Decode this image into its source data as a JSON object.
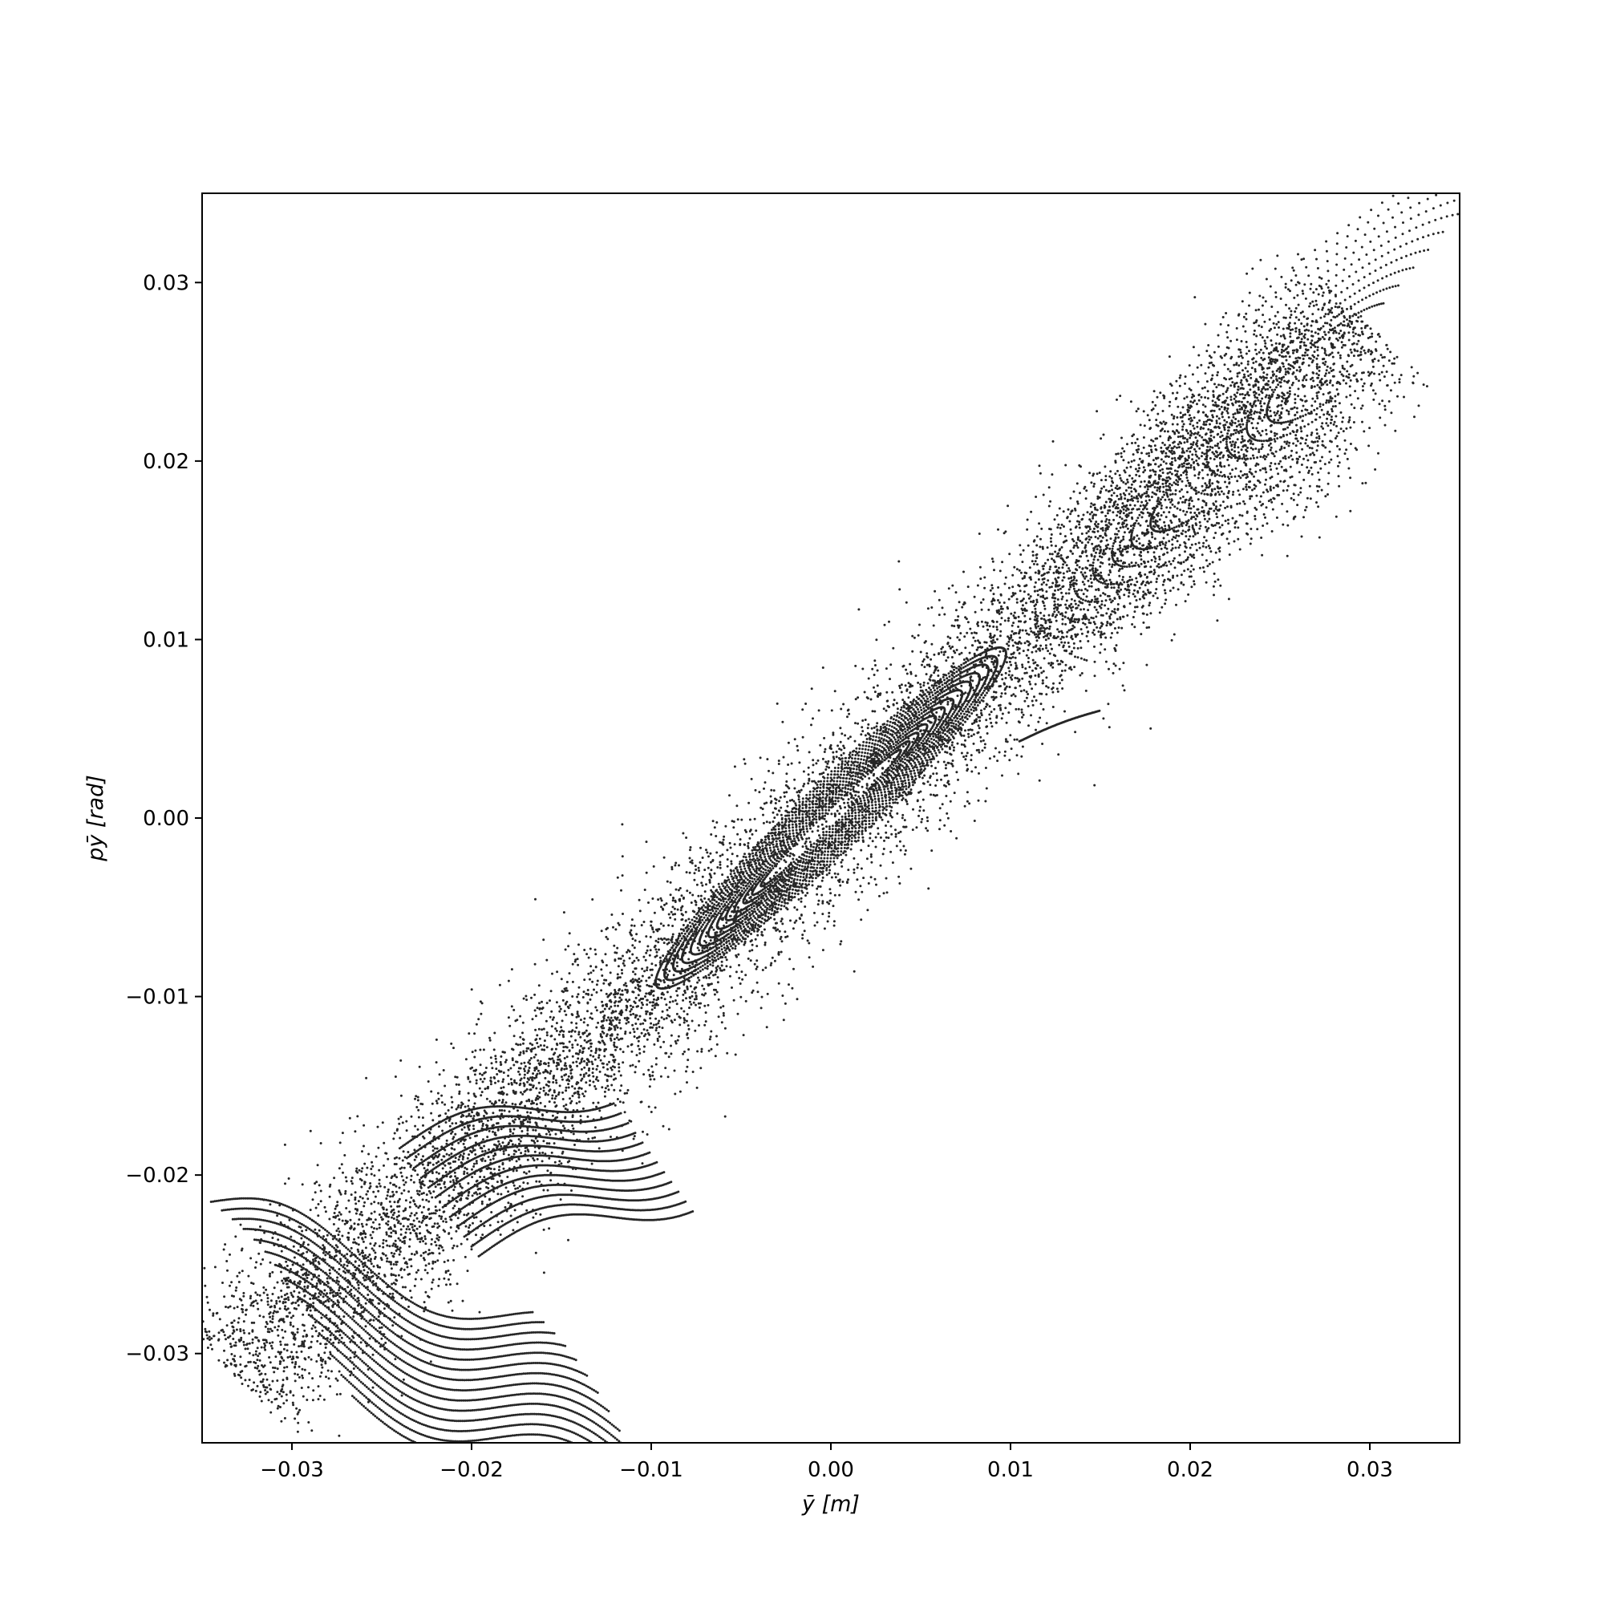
{
  "chart_data": {
    "type": "scatter",
    "title": "",
    "xlabel": "ȳ [m]",
    "ylabel": "pȳ [rad]",
    "xlim": [
      -0.035,
      0.035
    ],
    "ylim": [
      -0.035,
      0.035
    ],
    "x_ticks": [
      {
        "value": -0.03,
        "label": "−0.03"
      },
      {
        "value": -0.02,
        "label": "−0.02"
      },
      {
        "value": -0.01,
        "label": "−0.01"
      },
      {
        "value": 0.0,
        "label": "0.00"
      },
      {
        "value": 0.01,
        "label": "0.01"
      },
      {
        "value": 0.02,
        "label": "0.02"
      },
      {
        "value": 0.03,
        "label": "0.03"
      }
    ],
    "y_ticks": [
      {
        "value": -0.03,
        "label": "−0.03"
      },
      {
        "value": -0.02,
        "label": "−0.02"
      },
      {
        "value": -0.01,
        "label": "−0.01"
      },
      {
        "value": 0.0,
        "label": "0.00"
      },
      {
        "value": 0.01,
        "label": "0.01"
      },
      {
        "value": 0.02,
        "label": "0.02"
      },
      {
        "value": 0.03,
        "label": "0.03"
      }
    ],
    "grid": false,
    "legend": "none",
    "marker_color": "#000000",
    "series": [
      {
        "description_kind": "phase-space tracking points",
        "points_sample": [
          [
            -0.034,
            -0.0305
          ],
          [
            -0.03,
            -0.0275
          ],
          [
            -0.025,
            -0.0235
          ],
          [
            -0.02,
            -0.019
          ],
          [
            -0.015,
            -0.0145
          ],
          [
            -0.01,
            -0.0095
          ],
          [
            -0.005,
            -0.0048
          ],
          [
            0.0,
            0.0
          ],
          [
            0.005,
            0.0048
          ],
          [
            0.01,
            0.0098
          ],
          [
            0.015,
            0.0145
          ],
          [
            0.02,
            0.019
          ],
          [
            0.025,
            0.0235
          ],
          [
            0.03,
            0.028
          ],
          [
            0.033,
            0.0285
          ],
          [
            -0.033,
            -0.021
          ],
          [
            -0.03,
            -0.0205
          ],
          [
            0.012,
            0.0105
          ],
          [
            -0.012,
            -0.0105
          ],
          [
            0.015,
            0.006
          ],
          [
            0.011,
            0.0045
          ]
        ]
      }
    ]
  }
}
